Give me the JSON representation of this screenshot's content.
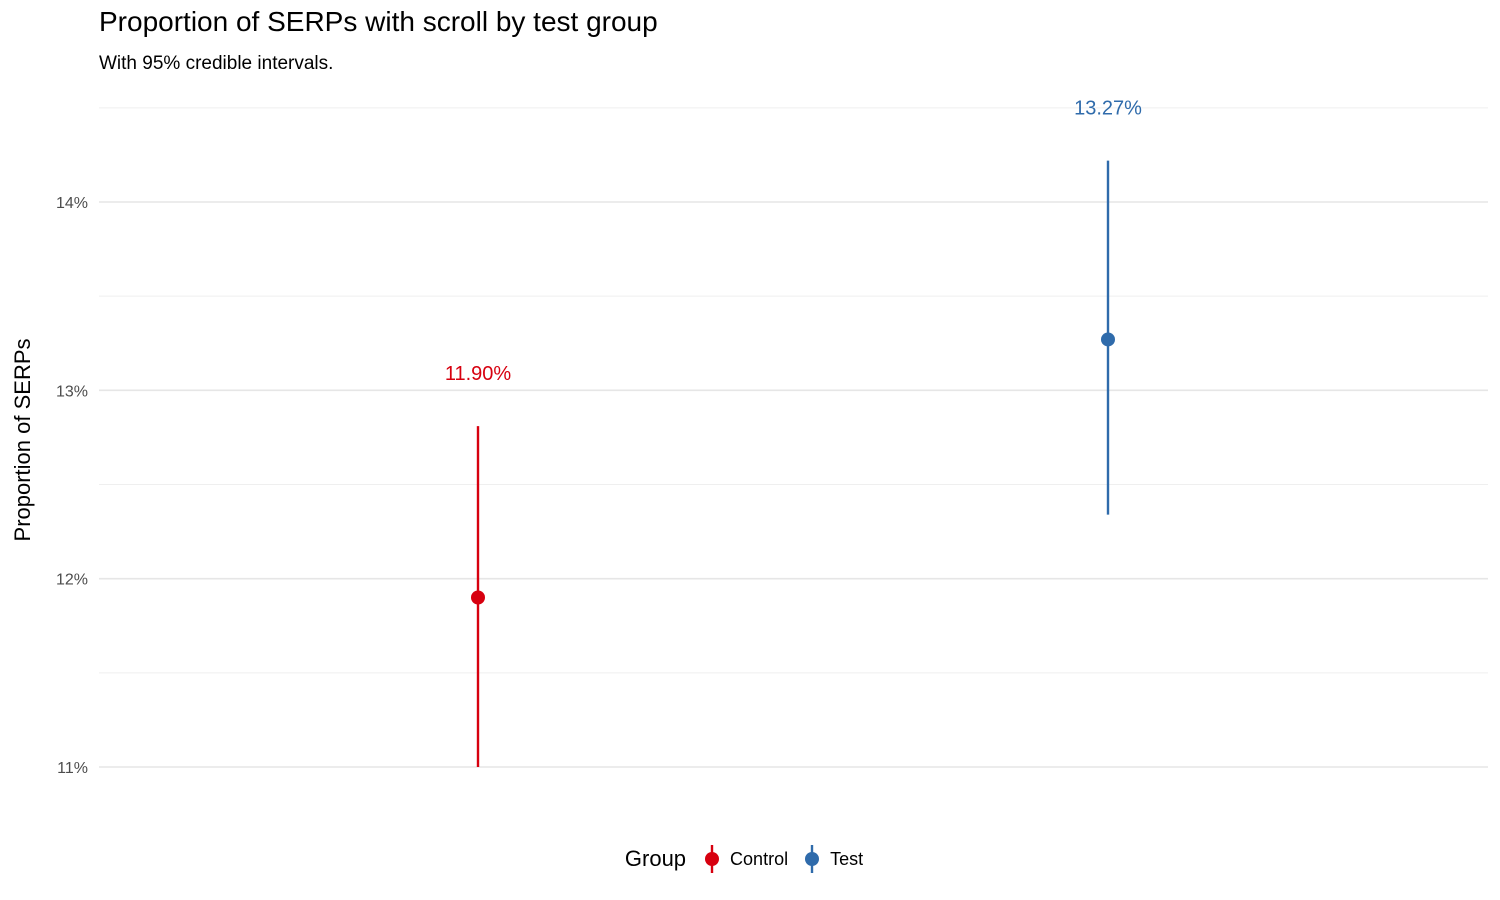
{
  "chart_data": {
    "type": "pointrange",
    "title": "Proportion of SERPs with scroll by test group",
    "subtitle": "With 95% credible intervals.",
    "ylabel": "Proportion of SERPs",
    "ylim": [
      11.0,
      14.5
    ],
    "y_ticks": [
      11,
      12,
      13,
      14
    ],
    "y_tick_labels": [
      "11%",
      "12%",
      "13%",
      "14%"
    ],
    "grid": true,
    "legend": {
      "title": "Group",
      "position": "bottom"
    },
    "series": [
      {
        "name": "Control",
        "color": "#d7000f",
        "estimate": 11.9,
        "lower": 11.0,
        "upper": 12.81,
        "label": "11.90%"
      },
      {
        "name": "Test",
        "color": "#2f6bab",
        "estimate": 13.27,
        "lower": 12.34,
        "upper": 14.22,
        "label": "13.27%"
      }
    ]
  }
}
